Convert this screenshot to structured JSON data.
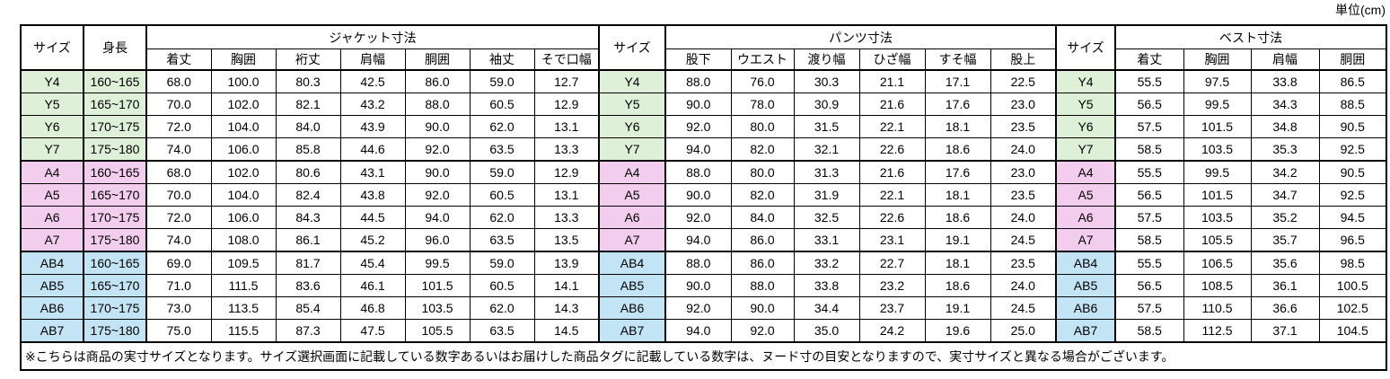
{
  "unit_label": "単位(cm)",
  "footnote": "※こちらは商品の実寸サイズとなります。サイズ選択画面に記載している数字あるいはお届けした商品タグに記載している数字は、ヌード寸の目安となりますので、実寸サイズと異なる場合がございます。",
  "table": {
    "size_header": "サイズ",
    "height_header": "身長",
    "sections": [
      {
        "title": "ジャケット寸法",
        "columns": [
          "着丈",
          "胸囲",
          "裄丈",
          "肩幅",
          "胴囲",
          "袖丈",
          "そで口幅"
        ]
      },
      {
        "title": "パンツ寸法",
        "columns": [
          "股下",
          "ウエスト",
          "渡り幅",
          "ひざ幅",
          "すそ幅",
          "股上"
        ]
      },
      {
        "title": "ベスト寸法",
        "columns": [
          "着丈",
          "胸囲",
          "肩幅",
          "胴囲"
        ]
      }
    ],
    "group_colors": {
      "Y": "#def0d8",
      "A": "#f2cdee",
      "AB": "#c2e4f4"
    },
    "rows": [
      {
        "group": "Y",
        "size": "Y4",
        "height": "160~165",
        "jacket": [
          "68.0",
          "100.0",
          "80.3",
          "42.5",
          "86.0",
          "59.0",
          "12.7"
        ],
        "pants": [
          "88.0",
          "76.0",
          "30.3",
          "21.1",
          "17.1",
          "22.5"
        ],
        "vest": [
          "55.5",
          "97.5",
          "33.8",
          "86.5"
        ]
      },
      {
        "group": "Y",
        "size": "Y5",
        "height": "165~170",
        "jacket": [
          "70.0",
          "102.0",
          "82.1",
          "43.2",
          "88.0",
          "60.5",
          "12.9"
        ],
        "pants": [
          "90.0",
          "78.0",
          "30.9",
          "21.6",
          "17.6",
          "23.0"
        ],
        "vest": [
          "56.5",
          "99.5",
          "34.3",
          "88.5"
        ]
      },
      {
        "group": "Y",
        "size": "Y6",
        "height": "170~175",
        "jacket": [
          "72.0",
          "104.0",
          "84.0",
          "43.9",
          "90.0",
          "62.0",
          "13.1"
        ],
        "pants": [
          "92.0",
          "80.0",
          "31.5",
          "22.1",
          "18.1",
          "23.5"
        ],
        "vest": [
          "57.5",
          "101.5",
          "34.8",
          "90.5"
        ]
      },
      {
        "group": "Y",
        "size": "Y7",
        "height": "175~180",
        "jacket": [
          "74.0",
          "106.0",
          "85.8",
          "44.6",
          "92.0",
          "63.5",
          "13.3"
        ],
        "pants": [
          "94.0",
          "82.0",
          "32.1",
          "22.6",
          "18.6",
          "24.0"
        ],
        "vest": [
          "58.5",
          "103.5",
          "35.3",
          "92.5"
        ]
      },
      {
        "group": "A",
        "size": "A4",
        "height": "160~165",
        "jacket": [
          "68.0",
          "102.0",
          "80.6",
          "43.1",
          "90.0",
          "59.0",
          "12.9"
        ],
        "pants": [
          "88.0",
          "80.0",
          "31.3",
          "21.6",
          "17.6",
          "23.0"
        ],
        "vest": [
          "55.5",
          "99.5",
          "34.2",
          "90.5"
        ]
      },
      {
        "group": "A",
        "size": "A5",
        "height": "165~170",
        "jacket": [
          "70.0",
          "104.0",
          "82.4",
          "43.8",
          "92.0",
          "60.5",
          "13.1"
        ],
        "pants": [
          "90.0",
          "82.0",
          "31.9",
          "22.1",
          "18.1",
          "23.5"
        ],
        "vest": [
          "56.5",
          "101.5",
          "34.7",
          "92.5"
        ]
      },
      {
        "group": "A",
        "size": "A6",
        "height": "170~175",
        "jacket": [
          "72.0",
          "106.0",
          "84.3",
          "44.5",
          "94.0",
          "62.0",
          "13.3"
        ],
        "pants": [
          "92.0",
          "84.0",
          "32.5",
          "22.6",
          "18.6",
          "24.0"
        ],
        "vest": [
          "57.5",
          "103.5",
          "35.2",
          "94.5"
        ]
      },
      {
        "group": "A",
        "size": "A7",
        "height": "175~180",
        "jacket": [
          "74.0",
          "108.0",
          "86.1",
          "45.2",
          "96.0",
          "63.5",
          "13.5"
        ],
        "pants": [
          "94.0",
          "86.0",
          "33.1",
          "23.1",
          "19.1",
          "24.5"
        ],
        "vest": [
          "58.5",
          "105.5",
          "35.7",
          "96.5"
        ]
      },
      {
        "group": "AB",
        "size": "AB4",
        "height": "160~165",
        "jacket": [
          "69.0",
          "109.5",
          "81.7",
          "45.4",
          "99.5",
          "59.0",
          "13.9"
        ],
        "pants": [
          "88.0",
          "86.0",
          "33.2",
          "22.7",
          "18.1",
          "23.5"
        ],
        "vest": [
          "55.5",
          "106.5",
          "35.6",
          "98.5"
        ]
      },
      {
        "group": "AB",
        "size": "AB5",
        "height": "165~170",
        "jacket": [
          "71.0",
          "111.5",
          "83.6",
          "46.1",
          "101.5",
          "60.5",
          "14.1"
        ],
        "pants": [
          "90.0",
          "88.0",
          "33.8",
          "23.2",
          "18.6",
          "24.0"
        ],
        "vest": [
          "56.5",
          "108.5",
          "36.1",
          "100.5"
        ]
      },
      {
        "group": "AB",
        "size": "AB6",
        "height": "170~175",
        "jacket": [
          "73.0",
          "113.5",
          "85.4",
          "46.8",
          "103.5",
          "62.0",
          "14.3"
        ],
        "pants": [
          "92.0",
          "90.0",
          "34.4",
          "23.7",
          "19.1",
          "24.5"
        ],
        "vest": [
          "57.5",
          "110.5",
          "36.6",
          "102.5"
        ]
      },
      {
        "group": "AB",
        "size": "AB7",
        "height": "175~180",
        "jacket": [
          "75.0",
          "115.5",
          "87.3",
          "47.5",
          "105.5",
          "63.5",
          "14.5"
        ],
        "pants": [
          "94.0",
          "92.0",
          "35.0",
          "24.2",
          "19.6",
          "25.0"
        ],
        "vest": [
          "58.5",
          "112.5",
          "37.1",
          "104.5"
        ]
      }
    ]
  }
}
